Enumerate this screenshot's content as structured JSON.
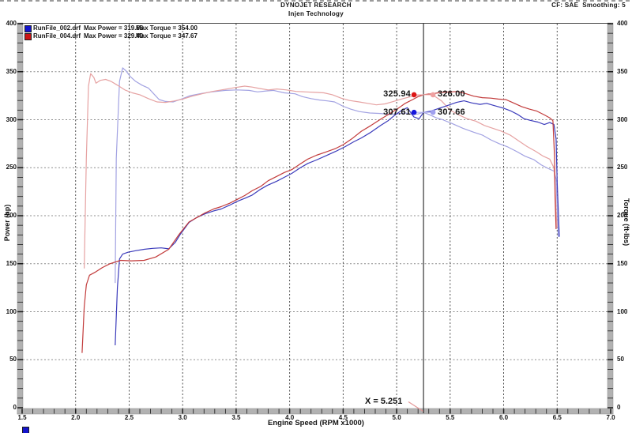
{
  "header": {
    "title": "DYNOJET RESEARCH",
    "subtitle": "Injen Technology",
    "correction_info": "CF: SAE  Smoothing: 5"
  },
  "legend": {
    "rows": [
      {
        "file": "RunFile_002.drf",
        "max_power": "Max Power = 319.66",
        "max_torque": "Max Torque = 354.00",
        "color": "#1414cc"
      },
      {
        "file": "RunFile_004.drf",
        "max_power": "Max Power = 329.40",
        "max_torque": "Max Torque = 347.67",
        "color": "#cc1414"
      }
    ],
    "clipped_next_row_color": "#1414cc"
  },
  "cursor": {
    "x_label": "X = 5.251",
    "x_value": 5.251,
    "readouts": [
      {
        "left_value": "325.94",
        "right_value": "326.00",
        "y_value": 326.0,
        "left_dot_color": "#dd1414",
        "right_dot_color": "#efa0a0",
        "connector_color": "#efb4b4"
      },
      {
        "left_value": "307.61",
        "right_value": "307.66",
        "y_value": 307.64,
        "left_dot_color": "#1414dd",
        "right_dot_color": "#a0a0ef",
        "connector_color": "#b4b4ef"
      }
    ]
  },
  "chart_data": {
    "type": "line",
    "x_axis": {
      "label": "Engine Speed (RPM x1000)",
      "min": 1.5,
      "max": 7.0,
      "major_step": 0.5,
      "minor_step": 0.1,
      "tick_labels": [
        "1.5",
        "2.0",
        "2.5",
        "3.0",
        "3.5",
        "4.0",
        "4.5",
        "5.0",
        "5.5",
        "6.0",
        "6.5",
        "7.0"
      ]
    },
    "y_left_axis": {
      "label": "Power (hp)",
      "min": 0,
      "max": 400,
      "major_step": 50,
      "minor_step": 10,
      "tick_labels": [
        "0",
        "50",
        "100",
        "150",
        "200",
        "250",
        "300",
        "350",
        "400"
      ]
    },
    "y_right_axis": {
      "label": "Torque (ft-lbs)",
      "min": 0,
      "max": 400,
      "major_step": 50,
      "minor_step": 10,
      "tick_labels": [
        "0",
        "50",
        "100",
        "150",
        "200",
        "250",
        "300",
        "350",
        "400"
      ]
    },
    "grid": {
      "vertical_lines": [
        2.0,
        2.5,
        3.0,
        3.5,
        4.0,
        4.5,
        5.0,
        5.5,
        6.0,
        6.5
      ],
      "horizontal_lines": [
        50,
        100,
        150,
        200,
        250,
        300,
        350
      ]
    },
    "cursor_x": 5.251,
    "series": [
      {
        "name": "RunFile_002.drf Torque",
        "unit": "ft-lbs",
        "color": "#a2a2e2",
        "max": 354.0,
        "points": [
          [
            2.37,
            130
          ],
          [
            2.38,
            260
          ],
          [
            2.41,
            340
          ],
          [
            2.44,
            354
          ],
          [
            2.47,
            351
          ],
          [
            2.51,
            345
          ],
          [
            2.56,
            340
          ],
          [
            2.62,
            336
          ],
          [
            2.68,
            333
          ],
          [
            2.73,
            327
          ],
          [
            2.78,
            321
          ],
          [
            2.84,
            319
          ],
          [
            2.91,
            318.5
          ],
          [
            3.0,
            322
          ],
          [
            3.07,
            325
          ],
          [
            3.16,
            327
          ],
          [
            3.27,
            329
          ],
          [
            3.4,
            330.5
          ],
          [
            3.51,
            331
          ],
          [
            3.62,
            330.5
          ],
          [
            3.7,
            329
          ],
          [
            3.78,
            330
          ],
          [
            3.85,
            330.5
          ],
          [
            3.95,
            328
          ],
          [
            4.05,
            327
          ],
          [
            4.12,
            324
          ],
          [
            4.2,
            322
          ],
          [
            4.28,
            320.5
          ],
          [
            4.36,
            319.5
          ],
          [
            4.42,
            318.5
          ],
          [
            4.5,
            314
          ],
          [
            4.57,
            311
          ],
          [
            4.65,
            308.5
          ],
          [
            4.75,
            307
          ],
          [
            4.85,
            306.5
          ],
          [
            4.93,
            305.5
          ],
          [
            5.0,
            306
          ],
          [
            5.08,
            307
          ],
          [
            5.15,
            305.5
          ],
          [
            5.2,
            306
          ],
          [
            5.251,
            307.66
          ],
          [
            5.3,
            305.5
          ],
          [
            5.37,
            302
          ],
          [
            5.43,
            300
          ],
          [
            5.52,
            296
          ],
          [
            5.62,
            291
          ],
          [
            5.72,
            287
          ],
          [
            5.8,
            284
          ],
          [
            5.88,
            279
          ],
          [
            5.96,
            275
          ],
          [
            6.04,
            271.5
          ],
          [
            6.12,
            267
          ],
          [
            6.2,
            262
          ],
          [
            6.28,
            258.5
          ],
          [
            6.35,
            253
          ],
          [
            6.42,
            249
          ],
          [
            6.47,
            246.5
          ],
          [
            6.49,
            238
          ],
          [
            6.5,
            210
          ],
          [
            6.51,
            178
          ]
        ]
      },
      {
        "name": "RunFile_004.drf Torque",
        "unit": "ft-lbs",
        "color": "#e6a2a2",
        "max": 347.67,
        "points": [
          [
            2.08,
            145
          ],
          [
            2.1,
            260
          ],
          [
            2.12,
            335
          ],
          [
            2.14,
            348
          ],
          [
            2.17,
            344
          ],
          [
            2.19,
            338
          ],
          [
            2.23,
            341
          ],
          [
            2.28,
            342
          ],
          [
            2.33,
            340
          ],
          [
            2.39,
            336
          ],
          [
            2.46,
            331
          ],
          [
            2.53,
            328
          ],
          [
            2.6,
            326
          ],
          [
            2.68,
            322
          ],
          [
            2.76,
            318.5
          ],
          [
            2.84,
            318
          ],
          [
            2.92,
            319.5
          ],
          [
            3.0,
            321.5
          ],
          [
            3.09,
            324.5
          ],
          [
            3.18,
            327
          ],
          [
            3.28,
            329.5
          ],
          [
            3.39,
            331.5
          ],
          [
            3.49,
            333.5
          ],
          [
            3.58,
            335
          ],
          [
            3.65,
            334
          ],
          [
            3.72,
            332.5
          ],
          [
            3.8,
            331
          ],
          [
            3.88,
            332
          ],
          [
            3.97,
            331
          ],
          [
            4.06,
            329.5
          ],
          [
            4.15,
            329
          ],
          [
            4.24,
            328.5
          ],
          [
            4.32,
            328
          ],
          [
            4.4,
            326
          ],
          [
            4.48,
            322.5
          ],
          [
            4.56,
            320
          ],
          [
            4.65,
            318.5
          ],
          [
            4.73,
            317
          ],
          [
            4.81,
            315.5
          ],
          [
            4.89,
            316.5
          ],
          [
            4.97,
            319
          ],
          [
            5.06,
            322
          ],
          [
            5.15,
            324.5
          ],
          [
            5.2,
            325.5
          ],
          [
            5.251,
            326.0
          ],
          [
            5.3,
            327
          ],
          [
            5.36,
            324
          ],
          [
            5.42,
            319.5
          ],
          [
            5.5,
            310
          ],
          [
            5.58,
            305
          ],
          [
            5.66,
            301
          ],
          [
            5.74,
            298.5
          ],
          [
            5.82,
            294
          ],
          [
            5.9,
            291
          ],
          [
            5.98,
            288
          ],
          [
            6.06,
            284
          ],
          [
            6.14,
            278
          ],
          [
            6.22,
            272
          ],
          [
            6.3,
            267
          ],
          [
            6.37,
            262
          ],
          [
            6.43,
            259
          ],
          [
            6.47,
            250
          ],
          [
            6.48,
            232
          ],
          [
            6.49,
            205
          ],
          [
            6.5,
            188
          ]
        ]
      },
      {
        "name": "RunFile_002.drf Power",
        "unit": "hp",
        "color": "#3b3bbb",
        "max": 319.66,
        "points": [
          [
            2.37,
            65
          ],
          [
            2.39,
            125
          ],
          [
            2.41,
            155
          ],
          [
            2.44,
            160
          ],
          [
            2.49,
            162
          ],
          [
            2.56,
            163.5
          ],
          [
            2.64,
            165
          ],
          [
            2.72,
            166
          ],
          [
            2.8,
            166.5
          ],
          [
            2.87,
            165.5
          ],
          [
            2.93,
            172
          ],
          [
            2.98,
            181
          ],
          [
            3.06,
            193
          ],
          [
            3.13,
            198
          ],
          [
            3.21,
            202
          ],
          [
            3.29,
            205
          ],
          [
            3.36,
            207
          ],
          [
            3.44,
            211
          ],
          [
            3.51,
            215
          ],
          [
            3.58,
            218
          ],
          [
            3.65,
            221.5
          ],
          [
            3.72,
            227
          ],
          [
            3.79,
            231.5
          ],
          [
            3.88,
            236
          ],
          [
            3.95,
            240
          ],
          [
            4.02,
            244
          ],
          [
            4.1,
            250
          ],
          [
            4.17,
            254.5
          ],
          [
            4.25,
            258
          ],
          [
            4.33,
            262
          ],
          [
            4.43,
            267
          ],
          [
            4.52,
            272
          ],
          [
            4.6,
            277
          ],
          [
            4.67,
            281
          ],
          [
            4.76,
            287
          ],
          [
            4.85,
            294
          ],
          [
            4.92,
            299
          ],
          [
            4.98,
            304.5
          ],
          [
            5.05,
            310
          ],
          [
            5.1,
            312.5
          ],
          [
            5.16,
            303
          ],
          [
            5.21,
            301
          ],
          [
            5.251,
            307.61
          ],
          [
            5.32,
            309
          ],
          [
            5.4,
            312
          ],
          [
            5.48,
            315
          ],
          [
            5.56,
            318
          ],
          [
            5.63,
            319.66
          ],
          [
            5.7,
            317.5
          ],
          [
            5.78,
            316
          ],
          [
            5.84,
            317
          ],
          [
            5.92,
            314.5
          ],
          [
            6.0,
            312
          ],
          [
            6.07,
            309
          ],
          [
            6.13,
            305.5
          ],
          [
            6.19,
            301
          ],
          [
            6.26,
            299
          ],
          [
            6.32,
            297.5
          ],
          [
            6.38,
            295
          ],
          [
            6.43,
            297
          ],
          [
            6.47,
            295
          ],
          [
            6.49,
            280
          ],
          [
            6.5,
            235
          ],
          [
            6.52,
            178
          ]
        ]
      },
      {
        "name": "RunFile_004.drf Power",
        "unit": "hp",
        "color": "#c23b3b",
        "max": 329.4,
        "points": [
          [
            2.06,
            57
          ],
          [
            2.08,
            105
          ],
          [
            2.1,
            128
          ],
          [
            2.13,
            138
          ],
          [
            2.18,
            141
          ],
          [
            2.25,
            146
          ],
          [
            2.32,
            150
          ],
          [
            2.42,
            153.5
          ],
          [
            2.52,
            153
          ],
          [
            2.64,
            153.5
          ],
          [
            2.75,
            157
          ],
          [
            2.87,
            165
          ],
          [
            2.97,
            181
          ],
          [
            3.06,
            193.5
          ],
          [
            3.14,
            198.5
          ],
          [
            3.21,
            203
          ],
          [
            3.29,
            207
          ],
          [
            3.36,
            209.5
          ],
          [
            3.44,
            213
          ],
          [
            3.51,
            217
          ],
          [
            3.58,
            221
          ],
          [
            3.65,
            226
          ],
          [
            3.73,
            230.5
          ],
          [
            3.8,
            236.5
          ],
          [
            3.88,
            241
          ],
          [
            3.95,
            245
          ],
          [
            4.02,
            248
          ],
          [
            4.1,
            254
          ],
          [
            4.17,
            259
          ],
          [
            4.25,
            263
          ],
          [
            4.33,
            266
          ],
          [
            4.43,
            270
          ],
          [
            4.5,
            274
          ],
          [
            4.58,
            280
          ],
          [
            4.67,
            288
          ],
          [
            4.76,
            294
          ],
          [
            4.85,
            300.5
          ],
          [
            4.93,
            306
          ],
          [
            5.01,
            311.5
          ],
          [
            5.08,
            317
          ],
          [
            5.15,
            321
          ],
          [
            5.2,
            324
          ],
          [
            5.251,
            325.94
          ],
          [
            5.33,
            327
          ],
          [
            5.42,
            328.5
          ],
          [
            5.5,
            329
          ],
          [
            5.57,
            329.4
          ],
          [
            5.65,
            327
          ],
          [
            5.72,
            324.5
          ],
          [
            5.8,
            323
          ],
          [
            5.88,
            322.5
          ],
          [
            5.95,
            321.5
          ],
          [
            6.02,
            321
          ],
          [
            6.08,
            318
          ],
          [
            6.17,
            313.5
          ],
          [
            6.24,
            311
          ],
          [
            6.31,
            309
          ],
          [
            6.38,
            305
          ],
          [
            6.43,
            302
          ],
          [
            6.46,
            299
          ],
          [
            6.475,
            262
          ],
          [
            6.48,
            220
          ],
          [
            6.49,
            186
          ]
        ]
      }
    ]
  }
}
